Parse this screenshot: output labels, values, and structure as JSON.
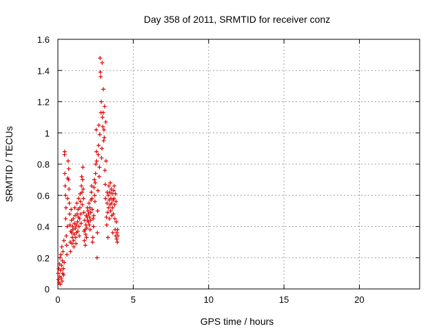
{
  "chart_data": {
    "type": "scatter",
    "title": "Day 358 of 2011, SRMTID for receiver conz",
    "xlabel": "GPS time / hours",
    "ylabel": "SRMTID / TECUs",
    "xlim": [
      0,
      24
    ],
    "ylim": [
      0,
      1.6
    ],
    "x_ticks": [
      0,
      5,
      10,
      15,
      20
    ],
    "x_tick_labels": [
      "0",
      "5",
      "10",
      "15",
      "20"
    ],
    "y_ticks": [
      0,
      0.2,
      0.4,
      0.6,
      0.8,
      1.0,
      1.2,
      1.4,
      1.6
    ],
    "y_tick_labels": [
      "0",
      "0.2",
      "0.4",
      "0.6",
      "0.8",
      "1",
      "1.2",
      "1.4",
      "1.6"
    ],
    "grid": true,
    "marker": "+",
    "marker_color": "#e00000",
    "series": [
      {
        "points": [
          [
            0.02,
            0.1
          ],
          [
            0.04,
            0.06
          ],
          [
            0.06,
            0.13
          ],
          [
            0.08,
            0.04
          ],
          [
            0.1,
            0.16
          ],
          [
            0.12,
            0.08
          ],
          [
            0.14,
            0.2
          ],
          [
            0.16,
            0.03
          ],
          [
            0.18,
            0.12
          ],
          [
            0.2,
            0.22
          ],
          [
            0.22,
            0.07
          ],
          [
            0.24,
            0.15
          ],
          [
            0.26,
            0.27
          ],
          [
            0.28,
            0.05
          ],
          [
            0.3,
            0.18
          ],
          [
            0.32,
            0.1
          ],
          [
            0.34,
            0.24
          ],
          [
            0.36,
            0.13
          ],
          [
            0.38,
            0.09
          ],
          [
            0.4,
            0.31
          ],
          [
            0.42,
            0.17
          ],
          [
            0.44,
            0.86
          ],
          [
            0.45,
            0.88
          ],
          [
            0.46,
            0.74
          ],
          [
            0.48,
            0.66
          ],
          [
            0.5,
            0.6
          ],
          [
            0.52,
            0.45
          ],
          [
            0.54,
            0.52
          ],
          [
            0.56,
            0.34
          ],
          [
            0.58,
            0.28
          ],
          [
            0.6,
            0.22
          ],
          [
            0.62,
            0.4
          ],
          [
            0.64,
            0.58
          ],
          [
            0.66,
            0.71
          ],
          [
            0.68,
            0.82
          ],
          [
            0.7,
            0.7
          ],
          [
            0.72,
            0.77
          ],
          [
            0.74,
            0.64
          ],
          [
            0.76,
            0.55
          ],
          [
            0.78,
            0.48
          ],
          [
            0.8,
            0.41
          ],
          [
            0.82,
            0.3
          ],
          [
            0.84,
            0.24
          ],
          [
            0.86,
            0.37
          ],
          [
            0.88,
            0.51
          ],
          [
            0.9,
            0.44
          ],
          [
            0.92,
            0.36
          ],
          [
            0.94,
            0.29
          ],
          [
            0.96,
            0.33
          ],
          [
            0.98,
            0.4
          ],
          [
            1.0,
            0.38
          ],
          [
            1.02,
            0.45
          ],
          [
            1.04,
            0.31
          ],
          [
            1.06,
            0.27
          ],
          [
            1.08,
            0.35
          ],
          [
            1.1,
            0.42
          ],
          [
            1.12,
            0.52
          ],
          [
            1.14,
            0.47
          ],
          [
            1.16,
            0.39
          ],
          [
            1.18,
            0.33
          ],
          [
            1.2,
            0.29
          ],
          [
            1.22,
            0.41
          ],
          [
            1.24,
            0.36
          ],
          [
            1.26,
            0.55
          ],
          [
            1.28,
            0.48
          ],
          [
            1.3,
            0.43
          ],
          [
            1.32,
            0.37
          ],
          [
            1.34,
            0.51
          ],
          [
            1.36,
            0.46
          ],
          [
            1.38,
            0.58
          ],
          [
            1.4,
            0.4
          ],
          [
            1.42,
            0.34
          ],
          [
            1.44,
            0.45
          ],
          [
            1.46,
            0.52
          ],
          [
            1.48,
            0.61
          ],
          [
            1.5,
            0.56
          ],
          [
            1.52,
            0.48
          ],
          [
            1.54,
            0.42
          ],
          [
            1.56,
            0.66
          ],
          [
            1.58,
            0.72
          ],
          [
            1.6,
            0.62
          ],
          [
            1.62,
            0.54
          ],
          [
            1.64,
            0.7
          ],
          [
            1.66,
            0.78
          ],
          [
            1.68,
            0.64
          ],
          [
            1.7,
            0.58
          ],
          [
            1.72,
            0.49
          ],
          [
            1.74,
            0.37
          ],
          [
            1.76,
            0.31
          ],
          [
            1.78,
            0.44
          ],
          [
            1.8,
            0.38
          ],
          [
            1.82,
            0.28
          ],
          [
            1.84,
            0.35
          ],
          [
            1.86,
            0.41
          ],
          [
            1.88,
            0.47
          ],
          [
            1.9,
            0.33
          ],
          [
            1.92,
            0.39
          ],
          [
            1.94,
            0.46
          ],
          [
            1.96,
            0.52
          ],
          [
            1.98,
            0.44
          ],
          [
            2.0,
            0.5
          ],
          [
            2.02,
            0.43
          ],
          [
            2.04,
            0.48
          ],
          [
            2.06,
            0.55
          ],
          [
            2.08,
            0.41
          ],
          [
            2.1,
            0.46
          ],
          [
            2.12,
            0.52
          ],
          [
            2.14,
            0.38
          ],
          [
            2.16,
            0.44
          ],
          [
            2.18,
            0.49
          ],
          [
            2.2,
            0.57
          ],
          [
            2.22,
            0.62
          ],
          [
            2.24,
            0.66
          ],
          [
            2.26,
            0.58
          ],
          [
            2.28,
            0.51
          ],
          [
            2.3,
            0.3
          ],
          [
            2.32,
            0.33
          ],
          [
            2.34,
            0.45
          ],
          [
            2.36,
            0.4
          ],
          [
            2.38,
            0.47
          ],
          [
            2.4,
            0.65
          ],
          [
            2.42,
            0.7
          ],
          [
            2.44,
            0.6
          ],
          [
            2.46,
            0.56
          ],
          [
            2.48,
            0.68
          ],
          [
            2.5,
            0.74
          ],
          [
            2.52,
            0.8
          ],
          [
            2.54,
            1.02
          ],
          [
            2.56,
            0.88
          ],
          [
            2.58,
            0.82
          ],
          [
            2.6,
            0.2
          ],
          [
            2.62,
            0.36
          ],
          [
            2.64,
            0.5
          ],
          [
            2.66,
            0.63
          ],
          [
            2.68,
            0.86
          ],
          [
            2.7,
            0.92
          ],
          [
            2.72,
            1.05
          ],
          [
            2.74,
            0.72
          ],
          [
            2.76,
            0.78
          ],
          [
            2.78,
            0.99
          ],
          [
            2.8,
            1.48
          ],
          [
            2.82,
            1.39
          ],
          [
            2.84,
            1.36
          ],
          [
            2.86,
            1.13
          ],
          [
            2.88,
            1.2
          ],
          [
            2.9,
            0.84
          ],
          [
            2.92,
            0.9
          ],
          [
            2.94,
            1.45
          ],
          [
            2.96,
            1.1
          ],
          [
            2.98,
            1.04
          ],
          [
            3.0,
            1.13
          ],
          [
            3.02,
            1.28
          ],
          [
            3.04,
            0.95
          ],
          [
            3.06,
            1.02
          ],
          [
            3.08,
            0.97
          ],
          [
            3.1,
            1.17
          ],
          [
            3.12,
            0.76
          ],
          [
            3.14,
            0.67
          ],
          [
            3.16,
            0.58
          ],
          [
            3.18,
            1.07
          ],
          [
            3.2,
            0.82
          ],
          [
            3.22,
            0.46
          ],
          [
            3.24,
            0.41
          ],
          [
            3.26,
            0.55
          ],
          [
            3.28,
            0.62
          ],
          [
            3.3,
            0.49
          ],
          [
            3.32,
            0.33
          ],
          [
            3.34,
            0.6
          ],
          [
            3.36,
            0.52
          ],
          [
            3.38,
            0.66
          ],
          [
            3.4,
            0.57
          ],
          [
            3.42,
            0.45
          ],
          [
            3.44,
            0.62
          ],
          [
            3.46,
            0.54
          ],
          [
            3.48,
            0.68
          ],
          [
            3.5,
            0.5
          ],
          [
            3.52,
            0.58
          ],
          [
            3.54,
            0.64
          ],
          [
            3.56,
            0.55
          ],
          [
            3.58,
            0.47
          ],
          [
            3.6,
            0.61
          ],
          [
            3.62,
            0.52
          ],
          [
            3.64,
            0.36
          ],
          [
            3.66,
            0.57
          ],
          [
            3.68,
            0.48
          ],
          [
            3.7,
            0.63
          ],
          [
            3.72,
            0.58
          ],
          [
            3.74,
            0.66
          ],
          [
            3.76,
            0.54
          ],
          [
            3.78,
            0.45
          ],
          [
            3.8,
            0.38
          ],
          [
            3.82,
            0.61
          ],
          [
            3.84,
            0.34
          ],
          [
            3.86,
            0.56
          ],
          [
            3.88,
            0.43
          ],
          [
            3.9,
            0.32
          ],
          [
            3.92,
            0.36
          ],
          [
            3.94,
            0.3
          ],
          [
            3.96,
            0.38
          ],
          [
            3.98,
            0.34
          ]
        ]
      }
    ]
  }
}
